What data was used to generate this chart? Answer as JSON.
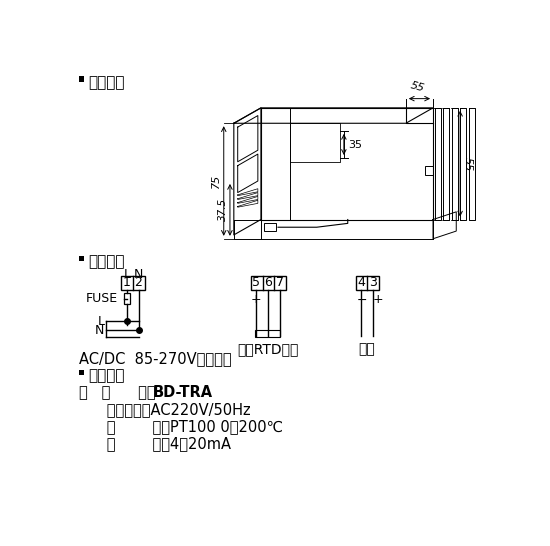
{
  "bg_color": "#ffffff",
  "text_color": "#000000",
  "line_color": "#000000",
  "section1_title": "外形尺寸",
  "section2_title": "接线方式",
  "section3_title": "订货范例",
  "acdc_label": "AC/DC  85-270V辅助电源",
  "example_line1_a": "例   型      号：",
  "example_line1_b": "BD-TRA",
  "example_line2": "      辅助电源：AC220V/50Hz",
  "example_line3": "      输        入：PT100 0～200℃",
  "example_line4": "      输        出：4～20mA",
  "dim_55_top": "55",
  "dim_35": "35",
  "dim_75": "75",
  "dim_375": "37.5",
  "dim_55_right": "55",
  "rtd_label": "三线RTD输入",
  "output_label": "输出"
}
